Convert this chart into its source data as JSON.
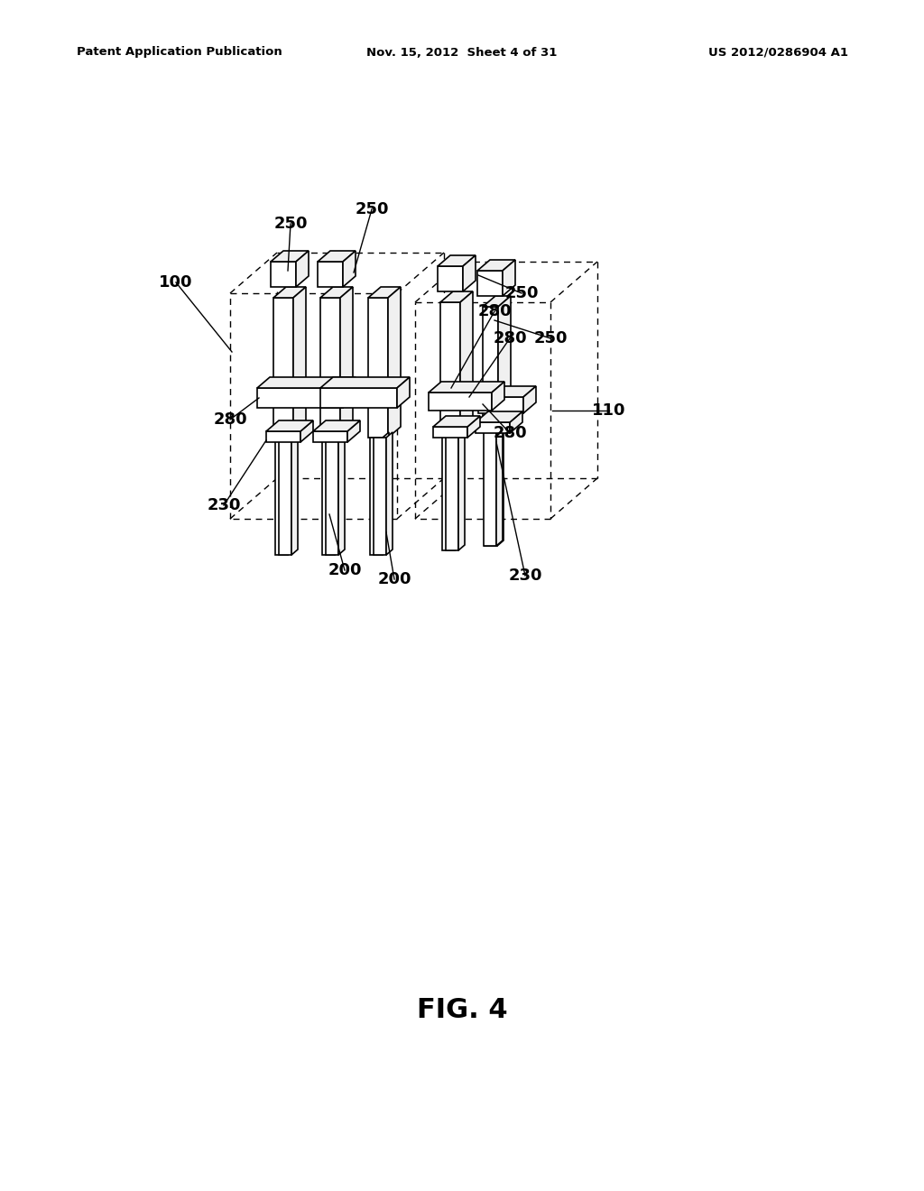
{
  "bg_color": "#ffffff",
  "header_left": "Patent Application Publication",
  "header_center": "Nov. 15, 2012  Sheet 4 of 31",
  "header_right": "US 2012/0286904 A1",
  "figure_label": "FIG. 4",
  "line_color": "#000000",
  "fill_white": "#ffffff",
  "fill_light": "#f0f0f0",
  "lw_solid": 1.2,
  "lw_dashed": 1.0,
  "dash_pattern": [
    5,
    4
  ],
  "label_fontsize": 13,
  "fig_label_fontsize": 22,
  "header_fontsize": 9.5
}
